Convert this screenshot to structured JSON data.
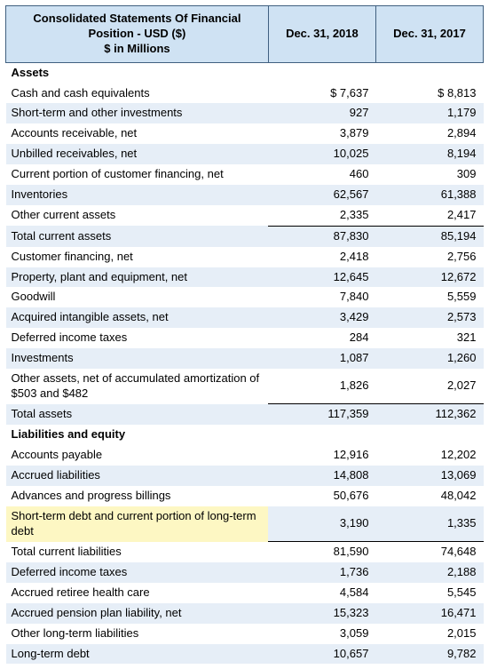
{
  "table": {
    "header": {
      "title": "Consolidated Statements Of Financial Position - USD ($)\n$ in Millions",
      "col1": "Dec. 31, 2018",
      "col2": "Dec. 31, 2017"
    },
    "colors": {
      "header_bg": "#cfe2f3",
      "header_border": "#406080",
      "stripe_bg": "#e6eef7",
      "highlight_bg": "#fdf7c3",
      "text": "#000000",
      "total_rule": "#000000"
    },
    "rows": [
      {
        "label": "Assets",
        "v1": "",
        "v2": "",
        "section": true,
        "stripe": false
      },
      {
        "label": "Cash and cash equivalents",
        "v1": "$ 7,637",
        "v2": "$ 8,813",
        "stripe": false
      },
      {
        "label": "Short-term and other investments",
        "v1": "927",
        "v2": "1,179",
        "stripe": true
      },
      {
        "label": "Accounts receivable, net",
        "v1": "3,879",
        "v2": "2,894",
        "stripe": false
      },
      {
        "label": "Unbilled receivables, net",
        "v1": "10,025",
        "v2": "8,194",
        "stripe": true
      },
      {
        "label": "Current portion of customer financing, net",
        "v1": "460",
        "v2": "309",
        "stripe": false
      },
      {
        "label": "Inventories",
        "v1": "62,567",
        "v2": "61,388",
        "stripe": true
      },
      {
        "label": "Other current assets",
        "v1": "2,335",
        "v2": "2,417",
        "stripe": false
      },
      {
        "label": "Total current assets",
        "v1": "87,830",
        "v2": "85,194",
        "stripe": true,
        "total": true
      },
      {
        "label": "Customer financing, net",
        "v1": "2,418",
        "v2": "2,756",
        "stripe": false
      },
      {
        "label": "Property, plant and equipment, net",
        "v1": "12,645",
        "v2": "12,672",
        "stripe": true
      },
      {
        "label": "Goodwill",
        "v1": "7,840",
        "v2": "5,559",
        "stripe": false
      },
      {
        "label": "Acquired intangible assets, net",
        "v1": "3,429",
        "v2": "2,573",
        "stripe": true
      },
      {
        "label": "Deferred income taxes",
        "v1": "284",
        "v2": "321",
        "stripe": false
      },
      {
        "label": "Investments",
        "v1": "1,087",
        "v2": "1,260",
        "stripe": true
      },
      {
        "label": "Other assets, net of accumulated amortization of $503 and $482",
        "v1": "1,826",
        "v2": "2,027",
        "stripe": false
      },
      {
        "label": "Total assets",
        "v1": "117,359",
        "v2": "112,362",
        "stripe": true,
        "total": true
      },
      {
        "label": "Liabilities and equity",
        "v1": "",
        "v2": "",
        "section": true,
        "stripe": false
      },
      {
        "label": "Accounts payable",
        "v1": "12,916",
        "v2": "12,202",
        "stripe": false
      },
      {
        "label": "Accrued liabilities",
        "v1": "14,808",
        "v2": "13,069",
        "stripe": true
      },
      {
        "label": "Advances and progress billings",
        "v1": "50,676",
        "v2": "48,042",
        "stripe": false
      },
      {
        "label": "Short-term debt and current portion of long-term debt",
        "v1": "3,190",
        "v2": "1,335",
        "stripe": true,
        "highlight": true
      },
      {
        "label": "Total current liabilities",
        "v1": "81,590",
        "v2": "74,648",
        "stripe": false,
        "total": true
      },
      {
        "label": "Deferred income taxes",
        "v1": "1,736",
        "v2": "2,188",
        "stripe": true
      },
      {
        "label": "Accrued retiree health care",
        "v1": "4,584",
        "v2": "5,545",
        "stripe": false
      },
      {
        "label": "Accrued pension plan liability, net",
        "v1": "15,323",
        "v2": "16,471",
        "stripe": true
      },
      {
        "label": "Other long-term liabilities",
        "v1": "3,059",
        "v2": "2,015",
        "stripe": false
      },
      {
        "label": "Long-term debt",
        "v1": "10,657",
        "v2": "9,782",
        "stripe": true
      }
    ]
  }
}
